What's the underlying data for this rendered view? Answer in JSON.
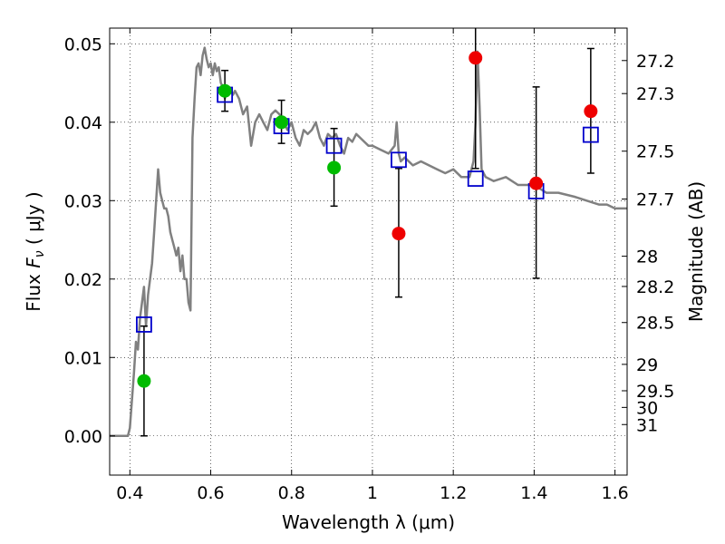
{
  "chart_data": {
    "type": "scatter",
    "xlabel": "Wavelength  λ (μm)",
    "ylabel": "Flux  F_ν  ( μJy )",
    "ylabel_parts": {
      "pre": "Flux ",
      "sym": "F",
      "sub": "ν",
      "post": " ( μJy )"
    },
    "y2label": "Magnitude (AB)",
    "xlim": [
      0.35,
      1.63
    ],
    "ylim": [
      -0.005,
      0.052
    ],
    "grid": true,
    "x_ticks": [
      0.4,
      0.6,
      0.8,
      1.0,
      1.2,
      1.4,
      1.6
    ],
    "x_tick_labels": [
      "0.4",
      "0.6",
      "0.8",
      "1",
      "1.2",
      "1.4",
      "1.6"
    ],
    "y_ticks": [
      0.0,
      0.01,
      0.02,
      0.03,
      0.04,
      0.05
    ],
    "y_tick_labels": [
      "0.00",
      "0.01",
      "0.02",
      "0.03",
      "0.04",
      "0.05"
    ],
    "magnitude_ticks": [
      {
        "label": "27.2",
        "mag": 27.2
      },
      {
        "label": "27.3",
        "mag": 27.3
      },
      {
        "label": "27.5",
        "mag": 27.5
      },
      {
        "label": "27.7",
        "mag": 27.7
      },
      {
        "label": "28",
        "mag": 28.0
      },
      {
        "label": "28.2",
        "mag": 28.2
      },
      {
        "label": "28.5",
        "mag": 28.5
      },
      {
        "label": "29",
        "mag": 29.0
      },
      {
        "label": "29.5",
        "mag": 29.5
      },
      {
        "label": "30",
        "mag": 30.0
      },
      {
        "label": "31",
        "mag": 31.0
      }
    ],
    "colors": {
      "sed": "#808080",
      "model": "#0000cc",
      "detected": "#00bb00",
      "upper": "#ee0000",
      "errorbar": "#000000"
    },
    "model_sed": {
      "x": [
        0.35,
        0.395,
        0.4,
        0.41,
        0.415,
        0.42,
        0.425,
        0.43,
        0.435,
        0.44,
        0.445,
        0.45,
        0.455,
        0.46,
        0.465,
        0.47,
        0.475,
        0.48,
        0.485,
        0.49,
        0.495,
        0.5,
        0.505,
        0.51,
        0.515,
        0.52,
        0.525,
        0.53,
        0.535,
        0.54,
        0.545,
        0.55,
        0.555,
        0.56,
        0.565,
        0.57,
        0.575,
        0.58,
        0.585,
        0.59,
        0.595,
        0.6,
        0.605,
        0.61,
        0.615,
        0.62,
        0.625,
        0.63,
        0.635,
        0.64,
        0.645,
        0.65,
        0.655,
        0.66,
        0.67,
        0.68,
        0.69,
        0.7,
        0.71,
        0.72,
        0.73,
        0.74,
        0.75,
        0.76,
        0.77,
        0.78,
        0.79,
        0.8,
        0.81,
        0.82,
        0.83,
        0.84,
        0.85,
        0.86,
        0.87,
        0.88,
        0.89,
        0.9,
        0.91,
        0.92,
        0.93,
        0.94,
        0.95,
        0.96,
        0.97,
        0.98,
        0.99,
        1.0,
        1.02,
        1.04,
        1.055,
        1.06,
        1.065,
        1.07,
        1.08,
        1.1,
        1.12,
        1.14,
        1.16,
        1.18,
        1.2,
        1.22,
        1.24,
        1.25,
        1.255,
        1.26,
        1.265,
        1.27,
        1.28,
        1.3,
        1.33,
        1.36,
        1.4,
        1.43,
        1.46,
        1.5,
        1.53,
        1.56,
        1.58,
        1.6,
        1.63
      ],
      "y": [
        0.0,
        0.0,
        0.001,
        0.008,
        0.012,
        0.011,
        0.015,
        0.017,
        0.019,
        0.014,
        0.018,
        0.02,
        0.022,
        0.026,
        0.03,
        0.034,
        0.031,
        0.03,
        0.029,
        0.029,
        0.028,
        0.026,
        0.025,
        0.024,
        0.023,
        0.024,
        0.021,
        0.023,
        0.02,
        0.02,
        0.017,
        0.016,
        0.038,
        0.043,
        0.047,
        0.0475,
        0.046,
        0.0485,
        0.0495,
        0.048,
        0.047,
        0.0475,
        0.046,
        0.0475,
        0.0465,
        0.047,
        0.045,
        0.0445,
        0.043,
        0.044,
        0.0445,
        0.044,
        0.0435,
        0.044,
        0.043,
        0.041,
        0.042,
        0.037,
        0.04,
        0.041,
        0.04,
        0.039,
        0.041,
        0.0415,
        0.041,
        0.04,
        0.039,
        0.04,
        0.038,
        0.037,
        0.039,
        0.0385,
        0.039,
        0.04,
        0.038,
        0.037,
        0.0385,
        0.038,
        0.0385,
        0.037,
        0.036,
        0.038,
        0.0375,
        0.0385,
        0.038,
        0.0375,
        0.037,
        0.037,
        0.0365,
        0.036,
        0.037,
        0.04,
        0.036,
        0.035,
        0.0355,
        0.0345,
        0.035,
        0.0345,
        0.034,
        0.0335,
        0.034,
        0.033,
        0.033,
        0.035,
        0.04,
        0.049,
        0.042,
        0.034,
        0.033,
        0.0325,
        0.033,
        0.032,
        0.032,
        0.031,
        0.031,
        0.0305,
        0.03,
        0.0295,
        0.0295,
        0.029,
        0.029
      ]
    },
    "model_photometry": {
      "name": "",
      "x": [
        0.435,
        0.635,
        0.775,
        0.905,
        1.065,
        1.255,
        1.405,
        1.54
      ],
      "y": [
        0.0142,
        0.0435,
        0.0395,
        0.037,
        0.0352,
        0.0328,
        0.0312,
        0.0384
      ]
    },
    "detections": {
      "name": "",
      "x": [
        0.435,
        0.635,
        0.775,
        0.905
      ],
      "y": [
        0.007,
        0.044,
        0.04,
        0.0342
      ],
      "err_low": [
        0.0,
        0.0414,
        0.0373,
        0.0293
      ],
      "err_high": [
        0.014,
        0.0466,
        0.0428,
        0.0392
      ]
    },
    "upper_limits": {
      "name": "",
      "x": [
        1.065,
        1.255,
        1.405,
        1.54
      ],
      "y": [
        0.0258,
        0.0482,
        0.0322,
        0.0414
      ],
      "err_low": [
        0.0177,
        0.0341,
        0.0201,
        0.0335
      ],
      "err_high": [
        0.0341,
        0.0525,
        0.0445,
        0.0494
      ]
    }
  }
}
